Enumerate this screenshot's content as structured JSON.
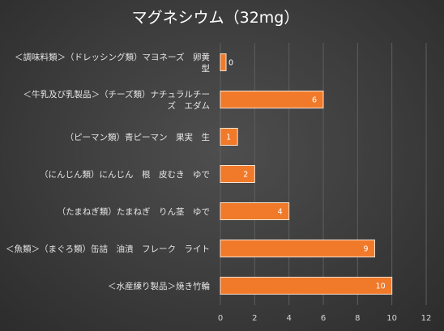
{
  "chart_data": {
    "type": "bar",
    "orientation": "horizontal",
    "title": "マグネシウム（32mg）",
    "categories": [
      [
        "＜調味料類＞（ドレッシング類）マヨネーズ　卵黄",
        "型"
      ],
      [
        "＜牛乳及び乳製品＞（チーズ類）ナチュラルチー",
        "ズ　エダム"
      ],
      [
        "（ピーマン類）青ピーマン　果実　生"
      ],
      [
        "（にんじん類）にんじん　根　皮むき　ゆで"
      ],
      [
        "（たまねぎ類）たまねぎ　りん茎　ゆで"
      ],
      [
        "＜魚類＞（まぐろ類）缶詰　油漬　フレーク　ライト"
      ],
      [
        "＜水産練り製品＞焼き竹輪"
      ]
    ],
    "values": [
      0,
      6,
      1,
      2,
      4,
      9,
      10
    ],
    "xlim": [
      0,
      12
    ],
    "xticks": [
      0,
      2,
      4,
      6,
      8,
      10,
      12
    ],
    "grid": "vertical",
    "legend": "none",
    "colors": {
      "bar": "#f07a2a",
      "bar_edge": "#fbe3d0",
      "grid": "#5e5e5e"
    }
  }
}
